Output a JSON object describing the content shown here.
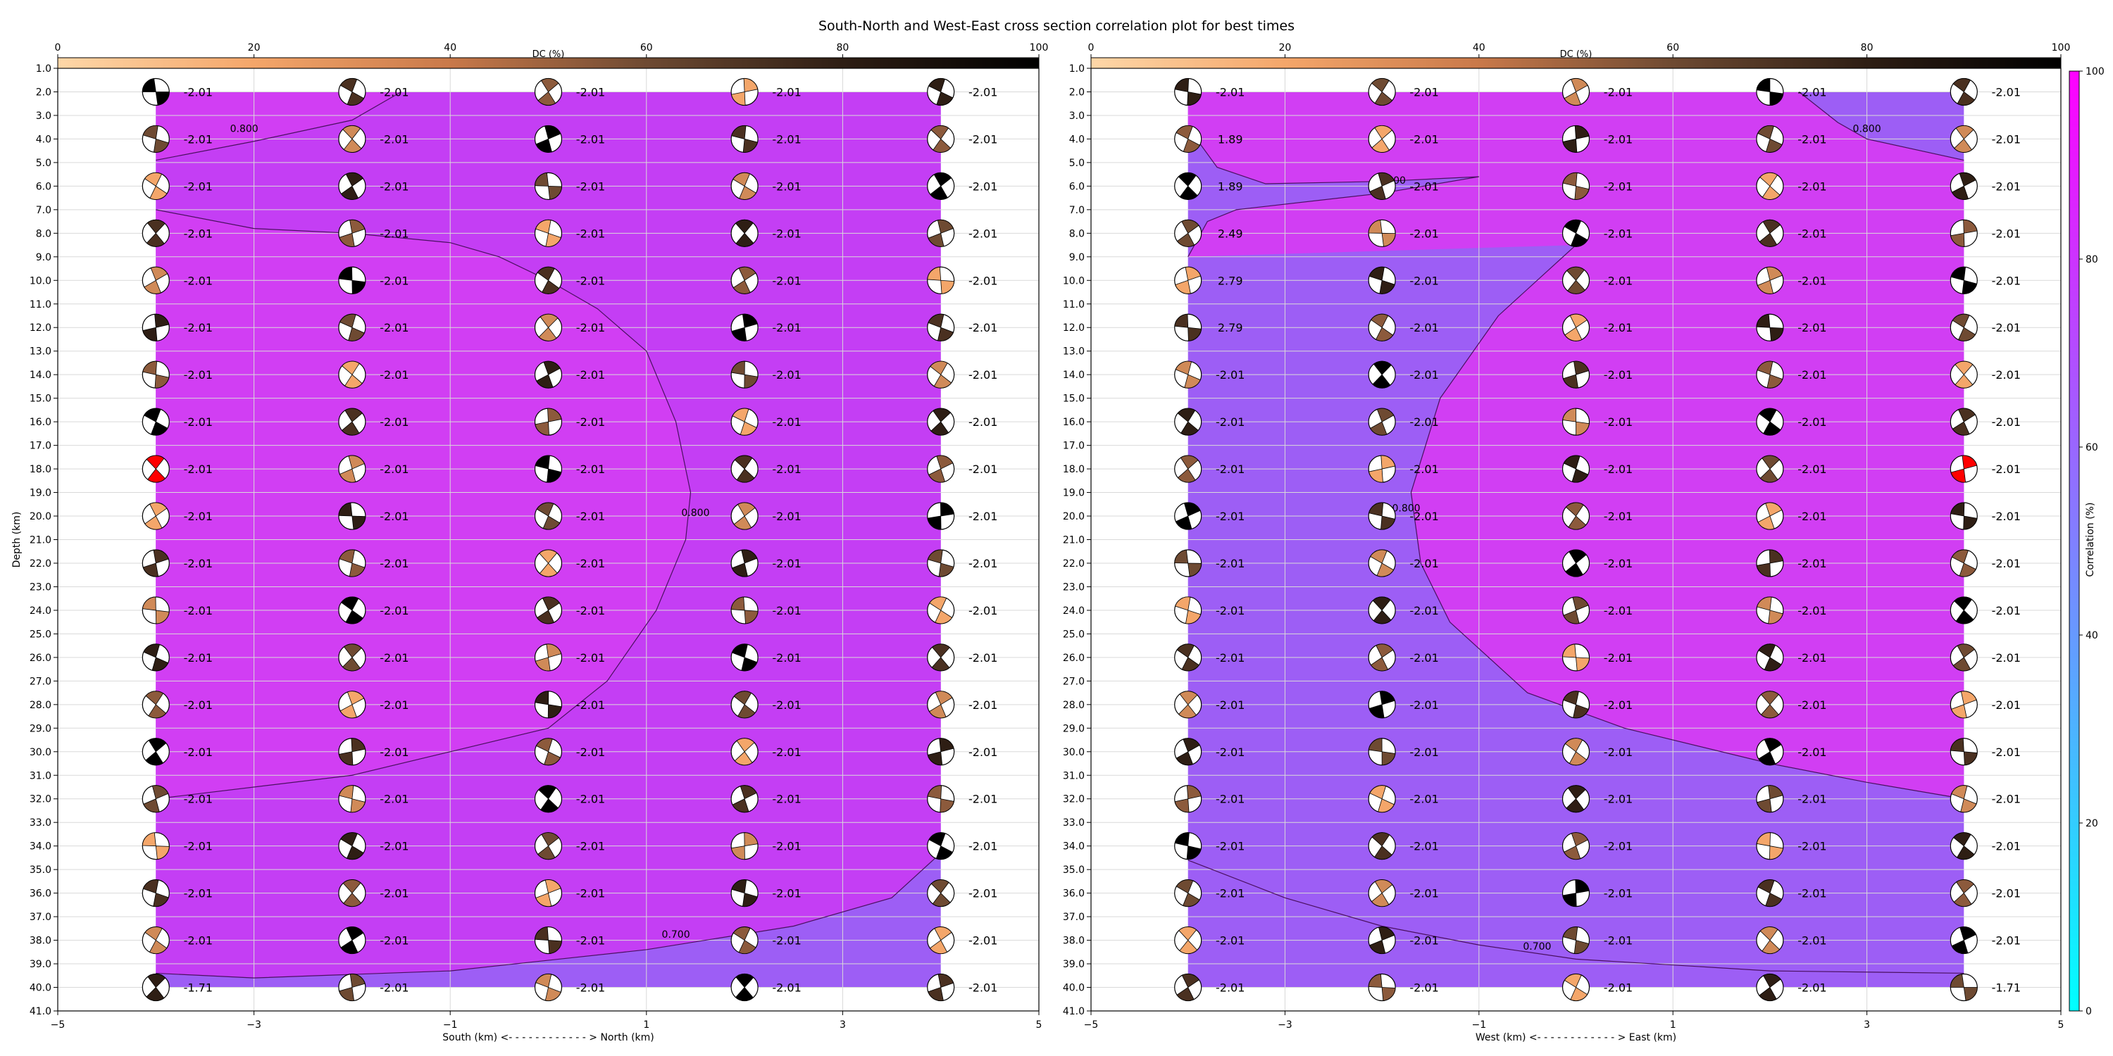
{
  "title": "South-North and West-East cross section correlation plot for best times",
  "dc_colorbar": {
    "label": "DC (%)",
    "ticks": [
      0,
      20,
      40,
      60,
      80,
      100
    ],
    "gradient": [
      "#fed7a8",
      "#f4a66a",
      "#c9794a",
      "#6e4a32",
      "#2e1e14",
      "#000000"
    ]
  },
  "corr_colorbar": {
    "label": "Correlation (%)",
    "ticks": [
      0,
      20,
      40,
      60,
      80,
      100
    ],
    "gradient": [
      "#00ffff",
      "#8080ff",
      "#ff00ff"
    ]
  },
  "colors": {
    "contour_fill_high": "#d13ef3",
    "contour_fill_low": "#9d5ef5",
    "best_beachball": "#ff0000",
    "grid": "#d9d9d9"
  },
  "y_ticks": [
    "1.0",
    "2.0",
    "3.0",
    "4.0",
    "5.0",
    "6.0",
    "7.0",
    "8.0",
    "9.0",
    "10.0",
    "11.0",
    "12.0",
    "13.0",
    "14.0",
    "15.0",
    "16.0",
    "17.0",
    "18.0",
    "19.0",
    "20.0",
    "21.0",
    "22.0",
    "23.0",
    "24.0",
    "25.0",
    "26.0",
    "27.0",
    "28.0",
    "29.0",
    "30.0",
    "31.0",
    "32.0",
    "33.0",
    "34.0",
    "35.0",
    "36.0",
    "37.0",
    "38.0",
    "39.0",
    "40.0",
    "41.0"
  ],
  "x_ticks": [
    "−5",
    "−3",
    "−1",
    "1",
    "3",
    "5"
  ],
  "chart_data": [
    {
      "type": "heatmap",
      "panel": "south-north",
      "xlabel": "South (km) <- - - - - - - - - - - - > North (km)",
      "ylabel": "Depth (km)",
      "xlim": [
        -5,
        5
      ],
      "ylim": [
        41,
        1
      ],
      "x": [
        -4,
        -2,
        0,
        2,
        4
      ],
      "depths": [
        2,
        4,
        6,
        8,
        10,
        12,
        14,
        16,
        18,
        20,
        22,
        24,
        26,
        28,
        30,
        32,
        34,
        36,
        38,
        40
      ],
      "value_labels": [
        [
          "-2.01",
          "-2.01",
          "-2.01",
          "-2.01",
          "-2.01"
        ],
        [
          "-2.01",
          "-2.01",
          "-2.01",
          "-2.01",
          "-2.01"
        ],
        [
          "-2.01",
          "-2.01",
          "-2.01",
          "-2.01",
          "-2.01"
        ],
        [
          "-2.01",
          "-2.01",
          "-2.01",
          "-2.01",
          "-2.01"
        ],
        [
          "-2.01",
          "-2.01",
          "-2.01",
          "-2.01",
          "-2.01"
        ],
        [
          "-2.01",
          "-2.01",
          "-2.01",
          "-2.01",
          "-2.01"
        ],
        [
          "-2.01",
          "-2.01",
          "-2.01",
          "-2.01",
          "-2.01"
        ],
        [
          "-2.01",
          "-2.01",
          "-2.01",
          "-2.01",
          "-2.01"
        ],
        [
          "-2.01",
          "-2.01",
          "-2.01",
          "-2.01",
          "-2.01"
        ],
        [
          "-2.01",
          "-2.01",
          "-2.01",
          "-2.01",
          "-2.01"
        ],
        [
          "-2.01",
          "-2.01",
          "-2.01",
          "-2.01",
          "-2.01"
        ],
        [
          "-2.01",
          "-2.01",
          "-2.01",
          "-2.01",
          "-2.01"
        ],
        [
          "-2.01",
          "-2.01",
          "-2.01",
          "-2.01",
          "-2.01"
        ],
        [
          "-2.01",
          "-2.01",
          "-2.01",
          "-2.01",
          "-2.01"
        ],
        [
          "-2.01",
          "-2.01",
          "-2.01",
          "-2.01",
          "-2.01"
        ],
        [
          "-2.01",
          "-2.01",
          "-2.01",
          "-2.01",
          "-2.01"
        ],
        [
          "-2.01",
          "-2.01",
          "-2.01",
          "-2.01",
          "-2.01"
        ],
        [
          "-2.01",
          "-2.01",
          "-2.01",
          "-2.01",
          "-2.01"
        ],
        [
          "-2.01",
          "-2.01",
          "-2.01",
          "-2.01",
          "-2.01"
        ],
        [
          "-1.71",
          "-2.01",
          "-2.01",
          "-2.01",
          "-2.01"
        ]
      ],
      "best": {
        "x": -4,
        "depth": 18
      },
      "contours": [
        {
          "level": "0.800",
          "points": [
            [
              -4,
              4.9
            ],
            [
              -3,
              4.1
            ],
            [
              -2,
              3.2
            ],
            [
              -1.5,
              2.0
            ]
          ],
          "label_at": [
            -3.1,
            3.7
          ]
        },
        {
          "level": "0.800",
          "points": [
            [
              -4,
              7
            ],
            [
              -3,
              7.8
            ],
            [
              -2,
              8
            ],
            [
              -1,
              8.4
            ],
            [
              -0.5,
              9
            ],
            [
              0,
              10
            ],
            [
              0.5,
              11.2
            ],
            [
              1,
              13
            ],
            [
              1.3,
              16
            ],
            [
              1.45,
              19
            ],
            [
              1.4,
              21
            ],
            [
              1.1,
              24
            ],
            [
              0.6,
              27
            ],
            [
              0,
              29
            ],
            [
              -1,
              30
            ],
            [
              -2,
              31
            ],
            [
              -4,
              32
            ]
          ],
          "label_at": [
            1.5,
            20.0
          ]
        },
        {
          "level": "0.700",
          "points": [
            [
              -4,
              39.4
            ],
            [
              -3,
              39.6
            ],
            [
              -1,
              39.3
            ],
            [
              1,
              38.4
            ],
            [
              2.5,
              37.4
            ],
            [
              3.5,
              36.2
            ],
            [
              4,
              34.3
            ]
          ],
          "label_at": [
            1.3,
            37.9
          ]
        }
      ]
    },
    {
      "type": "heatmap",
      "panel": "west-east",
      "xlabel": "West (km) <- - - - - - - - - - - - > East (km)",
      "ylabel": "",
      "xlim": [
        -5,
        5
      ],
      "ylim": [
        41,
        1
      ],
      "x": [
        -4,
        -2,
        0,
        2,
        4
      ],
      "depths": [
        2,
        4,
        6,
        8,
        10,
        12,
        14,
        16,
        18,
        20,
        22,
        24,
        26,
        28,
        30,
        32,
        34,
        36,
        38,
        40
      ],
      "value_labels": [
        [
          "-2.01",
          "-2.01",
          "-2.01",
          "-2.01",
          "-2.01"
        ],
        [
          "1.89",
          "-2.01",
          "-2.01",
          "-2.01",
          "-2.01"
        ],
        [
          "1.89",
          "-2.01",
          "-2.01",
          "-2.01",
          "-2.01"
        ],
        [
          "2.49",
          "-2.01",
          "-2.01",
          "-2.01",
          "-2.01"
        ],
        [
          "2.79",
          "-2.01",
          "-2.01",
          "-2.01",
          "-2.01"
        ],
        [
          "2.79",
          "-2.01",
          "-2.01",
          "-2.01",
          "-2.01"
        ],
        [
          "-2.01",
          "-2.01",
          "-2.01",
          "-2.01",
          "-2.01"
        ],
        [
          "-2.01",
          "-2.01",
          "-2.01",
          "-2.01",
          "-2.01"
        ],
        [
          "-2.01",
          "-2.01",
          "-2.01",
          "-2.01",
          "-2.01"
        ],
        [
          "-2.01",
          "-2.01",
          "-2.01",
          "-2.01",
          "-2.01"
        ],
        [
          "-2.01",
          "-2.01",
          "-2.01",
          "-2.01",
          "-2.01"
        ],
        [
          "-2.01",
          "-2.01",
          "-2.01",
          "-2.01",
          "-2.01"
        ],
        [
          "-2.01",
          "-2.01",
          "-2.01",
          "-2.01",
          "-2.01"
        ],
        [
          "-2.01",
          "-2.01",
          "-2.01",
          "-2.01",
          "-2.01"
        ],
        [
          "-2.01",
          "-2.01",
          "-2.01",
          "-2.01",
          "-2.01"
        ],
        [
          "-2.01",
          "-2.01",
          "-2.01",
          "-2.01",
          "-2.01"
        ],
        [
          "-2.01",
          "-2.01",
          "-2.01",
          "-2.01",
          "-2.01"
        ],
        [
          "-2.01",
          "-2.01",
          "-2.01",
          "-2.01",
          "-2.01"
        ],
        [
          "-2.01",
          "-2.01",
          "-2.01",
          "-2.01",
          "-2.01"
        ],
        [
          "-2.01",
          "-2.01",
          "-2.01",
          "-2.01",
          "-1.71"
        ]
      ],
      "best": {
        "x": 4,
        "depth": 18
      },
      "contours": [
        {
          "level": "0.800",
          "points": [
            [
              -4,
              3.5
            ],
            [
              -3.7,
              5.2
            ],
            [
              -3.2,
              5.9
            ],
            [
              -2,
              5.8
            ],
            [
              -1,
              5.6
            ],
            [
              -2,
              6.3
            ],
            [
              -3.5,
              7.0
            ],
            [
              -3.8,
              7.5
            ],
            [
              -4,
              9
            ]
          ],
          "label_at": [
            -1.9,
            5.9
          ]
        },
        {
          "level": "0.800",
          "points": [
            [
              2.3,
              2.0
            ],
            [
              2.7,
              3.3
            ],
            [
              3,
              4.0
            ],
            [
              4,
              4.9
            ]
          ],
          "label_at": [
            3.0,
            3.7
          ]
        },
        {
          "level": "0.800",
          "points": [
            [
              0,
              8.5
            ],
            [
              -0.8,
              11.5
            ],
            [
              -1.4,
              15
            ],
            [
              -1.7,
              19
            ],
            [
              -1.6,
              22
            ],
            [
              -1.3,
              24.5
            ],
            [
              -0.5,
              27.5
            ],
            [
              0.5,
              29
            ],
            [
              2,
              30.5
            ],
            [
              3,
              31.3
            ],
            [
              4,
              32
            ]
          ],
          "label_at": [
            -1.75,
            19.8
          ]
        },
        {
          "level": "0.700",
          "points": [
            [
              -4,
              34.6
            ],
            [
              -3,
              36.2
            ],
            [
              -2,
              37.4
            ],
            [
              -1,
              38.2
            ],
            [
              0,
              38.8
            ],
            [
              2,
              39.3
            ],
            [
              4,
              39.4
            ]
          ],
          "label_at": [
            -0.4,
            38.4
          ]
        }
      ]
    }
  ]
}
